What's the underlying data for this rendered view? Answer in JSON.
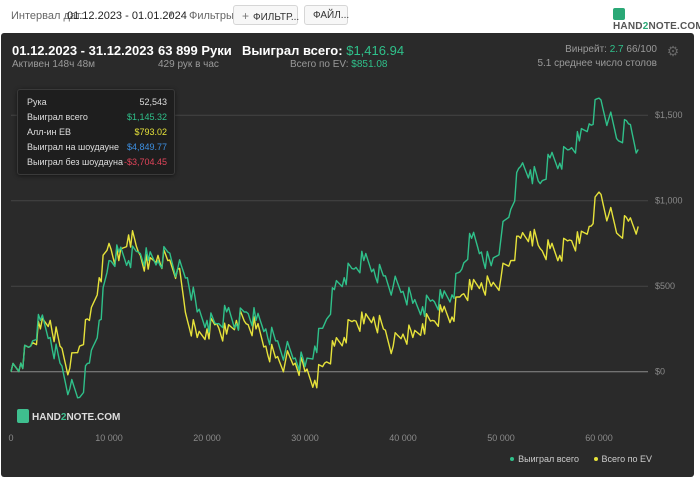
{
  "topbar": {
    "interval_label": "Интервал дат:",
    "interval_value": "01.12.2023 - 01.01.2024",
    "filters_label": "Фильтры:",
    "filter_button": "ФИЛЬТР...",
    "file_button": "ФАЙЛ...",
    "logo": {
      "prefix": "HAND",
      "accent": "2",
      "suffix": "NOTE.COM"
    }
  },
  "header": {
    "date_range": "01.12.2023 - 31.12.2023",
    "active": "Активен 148ч 48м",
    "hands": "63 899 Руки",
    "hands_rate": "429 рук в час",
    "won_label": "Выиграл всего:",
    "won_value": "$1,416.94",
    "ev_label": "Всего по EV:",
    "ev_value": "$851.08",
    "winrate_label": "Винрейт:",
    "winrate_value": "2.7",
    "winrate_suffix": "66/100",
    "tables": "5.1 среднее число столов"
  },
  "tooltip": {
    "rows": [
      {
        "label": "Рука",
        "value": "52,543",
        "color": "#dddddd"
      },
      {
        "label": "Выиграл всего",
        "value": "$1,145.32",
        "color": "#2fc08a"
      },
      {
        "label": "Алл-ин EB",
        "value": "$793.02",
        "color": "#e6e23a"
      },
      {
        "label": "Выиграл на шоудауне",
        "value": "$4,849.77",
        "color": "#3d8fe0"
      },
      {
        "label": "Выиграл без шоудауна",
        "value": "-$3,704.45",
        "color": "#e0445a"
      }
    ]
  },
  "watermark": {
    "prefix": "HAND",
    "accent": "2",
    "suffix": "NOTE.COM"
  },
  "legend": {
    "items": [
      {
        "label": "Выиграл всего",
        "color": "#2fc08a"
      },
      {
        "label": "Всего по EV",
        "color": "#e6e23a"
      }
    ]
  },
  "chart_data": {
    "type": "line",
    "x_ticks": [
      {
        "value": 0,
        "label": "0"
      },
      {
        "value": 10000,
        "label": "10 000"
      },
      {
        "value": 20000,
        "label": "20 000"
      },
      {
        "value": 30000,
        "label": "30 000"
      },
      {
        "value": 40000,
        "label": "40 000"
      },
      {
        "value": 50000,
        "label": "50 000"
      },
      {
        "value": 60000,
        "label": "60 000"
      }
    ],
    "y_ticks": [
      {
        "value": 0,
        "label": "$0"
      },
      {
        "value": 500,
        "label": "$500"
      },
      {
        "value": 1000,
        "label": "$1,000"
      },
      {
        "value": 1500,
        "label": "$1,500"
      }
    ],
    "xlim": [
      0,
      65000
    ],
    "ylim": [
      -300,
      1700
    ],
    "series": [
      {
        "name": "Выиграл всего",
        "color": "#2fc08a",
        "points": [
          [
            0,
            0
          ],
          [
            1000,
            50
          ],
          [
            2000,
            150
          ],
          [
            3000,
            300
          ],
          [
            4000,
            200
          ],
          [
            5000,
            50
          ],
          [
            6000,
            -100
          ],
          [
            7000,
            -150
          ],
          [
            8000,
            50
          ],
          [
            9000,
            300
          ],
          [
            10000,
            650
          ],
          [
            11000,
            700
          ],
          [
            12000,
            650
          ],
          [
            13000,
            700
          ],
          [
            14000,
            650
          ],
          [
            15000,
            650
          ],
          [
            16000,
            700
          ],
          [
            17000,
            600
          ],
          [
            18000,
            550
          ],
          [
            19000,
            350
          ],
          [
            20000,
            300
          ],
          [
            21000,
            280
          ],
          [
            22000,
            350
          ],
          [
            23000,
            280
          ],
          [
            24000,
            350
          ],
          [
            25000,
            300
          ],
          [
            26000,
            250
          ],
          [
            27000,
            180
          ],
          [
            28000,
            120
          ],
          [
            29000,
            80
          ],
          [
            30000,
            30
          ],
          [
            31000,
            150
          ],
          [
            32000,
            280
          ],
          [
            33000,
            480
          ],
          [
            34000,
            550
          ],
          [
            35000,
            600
          ],
          [
            36000,
            650
          ],
          [
            37000,
            600
          ],
          [
            38000,
            560
          ],
          [
            39000,
            500
          ],
          [
            40000,
            470
          ],
          [
            41000,
            400
          ],
          [
            42000,
            380
          ],
          [
            43000,
            420
          ],
          [
            44000,
            430
          ],
          [
            45000,
            450
          ],
          [
            46000,
            600
          ],
          [
            47000,
            780
          ],
          [
            48000,
            700
          ],
          [
            49000,
            620
          ],
          [
            50000,
            780
          ],
          [
            51000,
            950
          ],
          [
            52000,
            1200
          ],
          [
            53000,
            1180
          ],
          [
            54000,
            1100
          ],
          [
            55000,
            1250
          ],
          [
            56000,
            1220
          ],
          [
            57000,
            1300
          ],
          [
            58000,
            1350
          ],
          [
            59000,
            1450
          ],
          [
            60000,
            1600
          ],
          [
            61000,
            1480
          ],
          [
            62000,
            1350
          ],
          [
            63000,
            1450
          ],
          [
            64000,
            1300
          ]
        ]
      },
      {
        "name": "Всего по EV",
        "color": "#e6e23a",
        "points": [
          [
            0,
            0
          ],
          [
            1000,
            50
          ],
          [
            2000,
            150
          ],
          [
            3000,
            250
          ],
          [
            4000,
            300
          ],
          [
            5000,
            150
          ],
          [
            6000,
            20
          ],
          [
            7000,
            150
          ],
          [
            8000,
            300
          ],
          [
            9000,
            550
          ],
          [
            10000,
            750
          ],
          [
            11000,
            650
          ],
          [
            12000,
            800
          ],
          [
            13000,
            700
          ],
          [
            14000,
            600
          ],
          [
            15000,
            680
          ],
          [
            16000,
            650
          ],
          [
            17000,
            600
          ],
          [
            18000,
            300
          ],
          [
            19000,
            200
          ],
          [
            20000,
            250
          ],
          [
            21000,
            280
          ],
          [
            22000,
            220
          ],
          [
            23000,
            300
          ],
          [
            24000,
            280
          ],
          [
            25000,
            250
          ],
          [
            26000,
            150
          ],
          [
            27000,
            80
          ],
          [
            28000,
            60
          ],
          [
            29000,
            50
          ],
          [
            30000,
            0
          ],
          [
            31000,
            -50
          ],
          [
            32000,
            50
          ],
          [
            33000,
            150
          ],
          [
            34000,
            200
          ],
          [
            35000,
            300
          ],
          [
            36000,
            280
          ],
          [
            37000,
            320
          ],
          [
            38000,
            250
          ],
          [
            39000,
            150
          ],
          [
            40000,
            220
          ],
          [
            41000,
            200
          ],
          [
            42000,
            280
          ],
          [
            43000,
            300
          ],
          [
            44000,
            350
          ],
          [
            45000,
            320
          ],
          [
            46000,
            450
          ],
          [
            47000,
            480
          ],
          [
            48000,
            520
          ],
          [
            49000,
            500
          ],
          [
            50000,
            550
          ],
          [
            51000,
            650
          ],
          [
            52000,
            780
          ],
          [
            53000,
            820
          ],
          [
            54000,
            720
          ],
          [
            55000,
            720
          ],
          [
            56000,
            680
          ],
          [
            57000,
            770
          ],
          [
            58000,
            750
          ],
          [
            59000,
            850
          ],
          [
            60000,
            1050
          ],
          [
            61000,
            920
          ],
          [
            62000,
            800
          ],
          [
            63000,
            880
          ],
          [
            64000,
            850
          ]
        ]
      }
    ],
    "grid": true,
    "legend_position": "bottom-right"
  }
}
